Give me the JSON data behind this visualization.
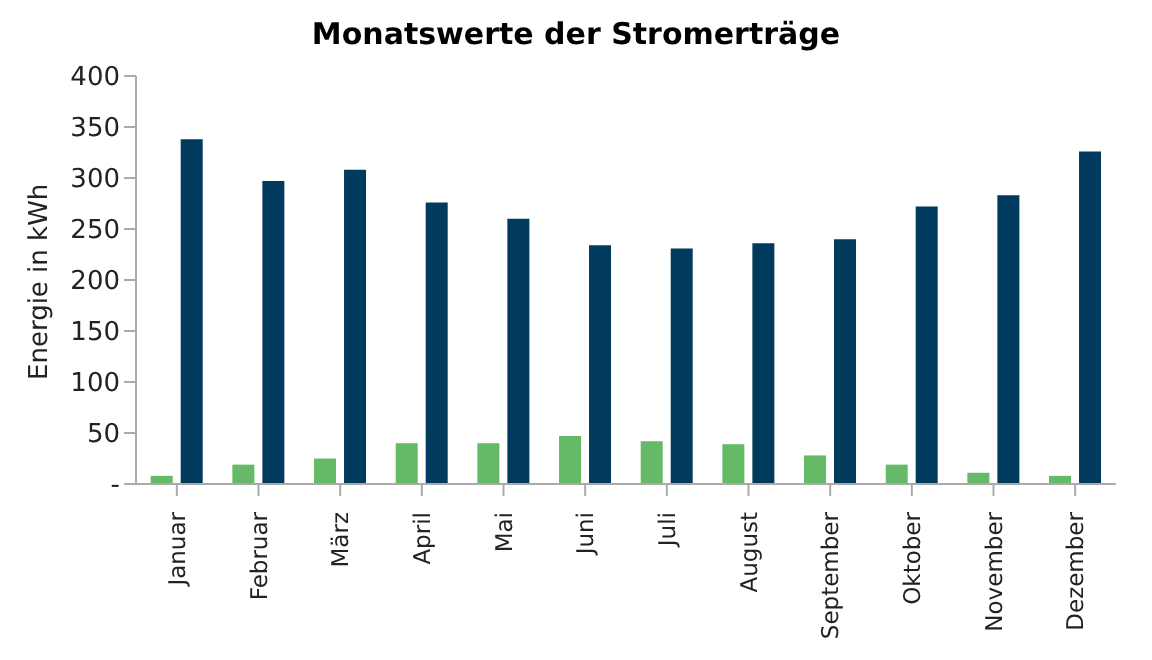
{
  "chart_data": {
    "type": "bar",
    "title": "Monatswerte der Stromerträge",
    "ylabel": "Energie in kWh",
    "categories": [
      "Januar",
      "Februar",
      "März",
      "April",
      "Mai",
      "Juni",
      "Juli",
      "August",
      "September",
      "Oktober",
      "November",
      "Dezember"
    ],
    "series": [
      {
        "color": "#66b966",
        "values": [
          8,
          19,
          25,
          40,
          40,
          47,
          42,
          39,
          28,
          19,
          11,
          8
        ]
      },
      {
        "color": "#003a5c",
        "values": [
          338,
          297,
          308,
          276,
          260,
          234,
          231,
          236,
          240,
          272,
          283,
          326
        ]
      }
    ],
    "ylim": [
      0,
      400
    ],
    "yticks": [
      {
        "value": 0,
        "label": "-"
      },
      50,
      100,
      150,
      200,
      250,
      300,
      350,
      400
    ],
    "grid": false,
    "legend": false
  }
}
